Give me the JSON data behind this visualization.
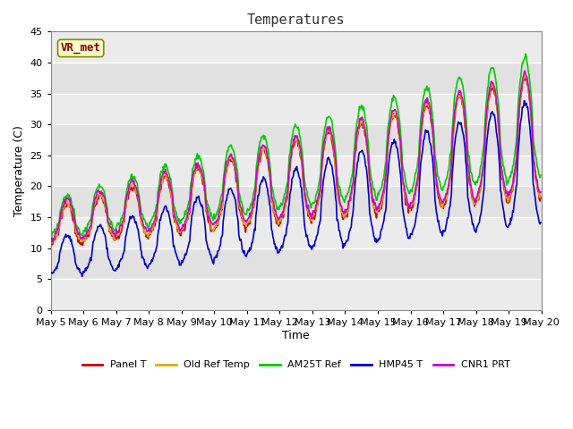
{
  "title": "Temperatures",
  "xlabel": "Time",
  "ylabel": "Temperature (C)",
  "ylim": [
    0,
    45
  ],
  "yticks": [
    0,
    5,
    10,
    15,
    20,
    25,
    30,
    35,
    40,
    45
  ],
  "xtick_labels": [
    "May 5",
    "May 6",
    "May 7",
    "May 8",
    "May 9",
    "May 10",
    "May 11",
    "May 12",
    "May 13",
    "May 14",
    "May 15",
    "May 16",
    "May 17",
    "May 18",
    "May 19",
    "May 20"
  ],
  "series_names": [
    "Panel T",
    "Old Ref Temp",
    "AM25T Ref",
    "HMP45 T",
    "CNR1 PRT"
  ],
  "series_colors": [
    "#cc0000",
    "#ddaa00",
    "#00cc00",
    "#0000cc",
    "#cc00cc"
  ],
  "annotation_text": "VR_met",
  "background_color": "#e8e8e8",
  "plot_bg": "#ebebeb",
  "grid_color": "#ffffff",
  "title_fontsize": 11,
  "axis_fontsize": 9,
  "tick_fontsize": 8,
  "legend_fontsize": 8,
  "n_days": 15,
  "n_per_day": 48
}
